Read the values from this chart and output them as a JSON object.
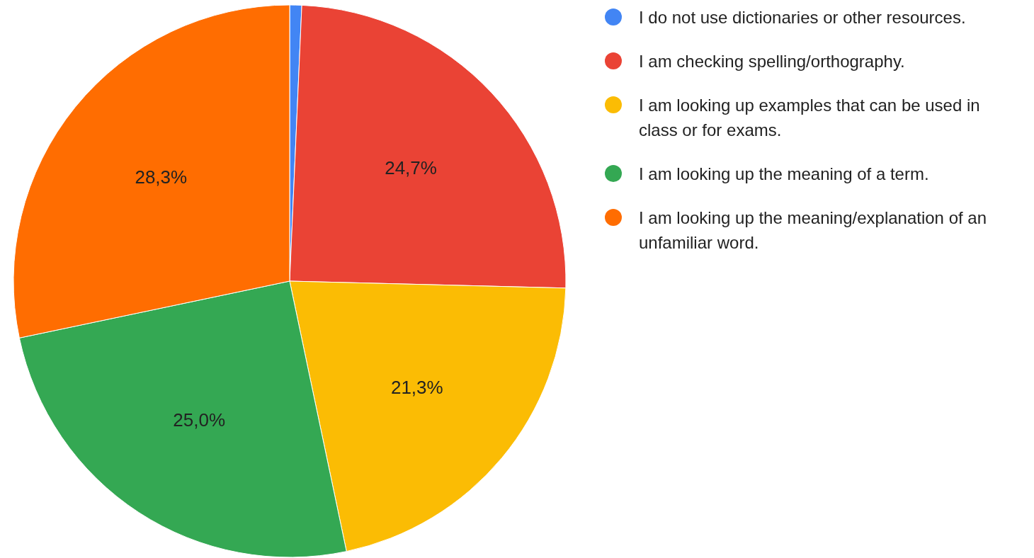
{
  "chart_data": {
    "type": "pie",
    "categories": [
      "I do not use dictionaries or other resources.",
      "I am checking spelling/orthography.",
      "I am looking up examples that can be used in class or for exams.",
      "I am looking up the meaning of a term.",
      "I am looking up the meaning/explanation of an unfamiliar word."
    ],
    "values": [
      0.7,
      24.7,
      21.3,
      25.0,
      28.3
    ],
    "value_labels": [
      null,
      "24,7%",
      "21,3%",
      "25,0%",
      "28,3%"
    ],
    "colors": [
      "#4285f4",
      "#ea4335",
      "#fbbc04",
      "#34a853",
      "#ff6d01"
    ],
    "legend": "right"
  }
}
